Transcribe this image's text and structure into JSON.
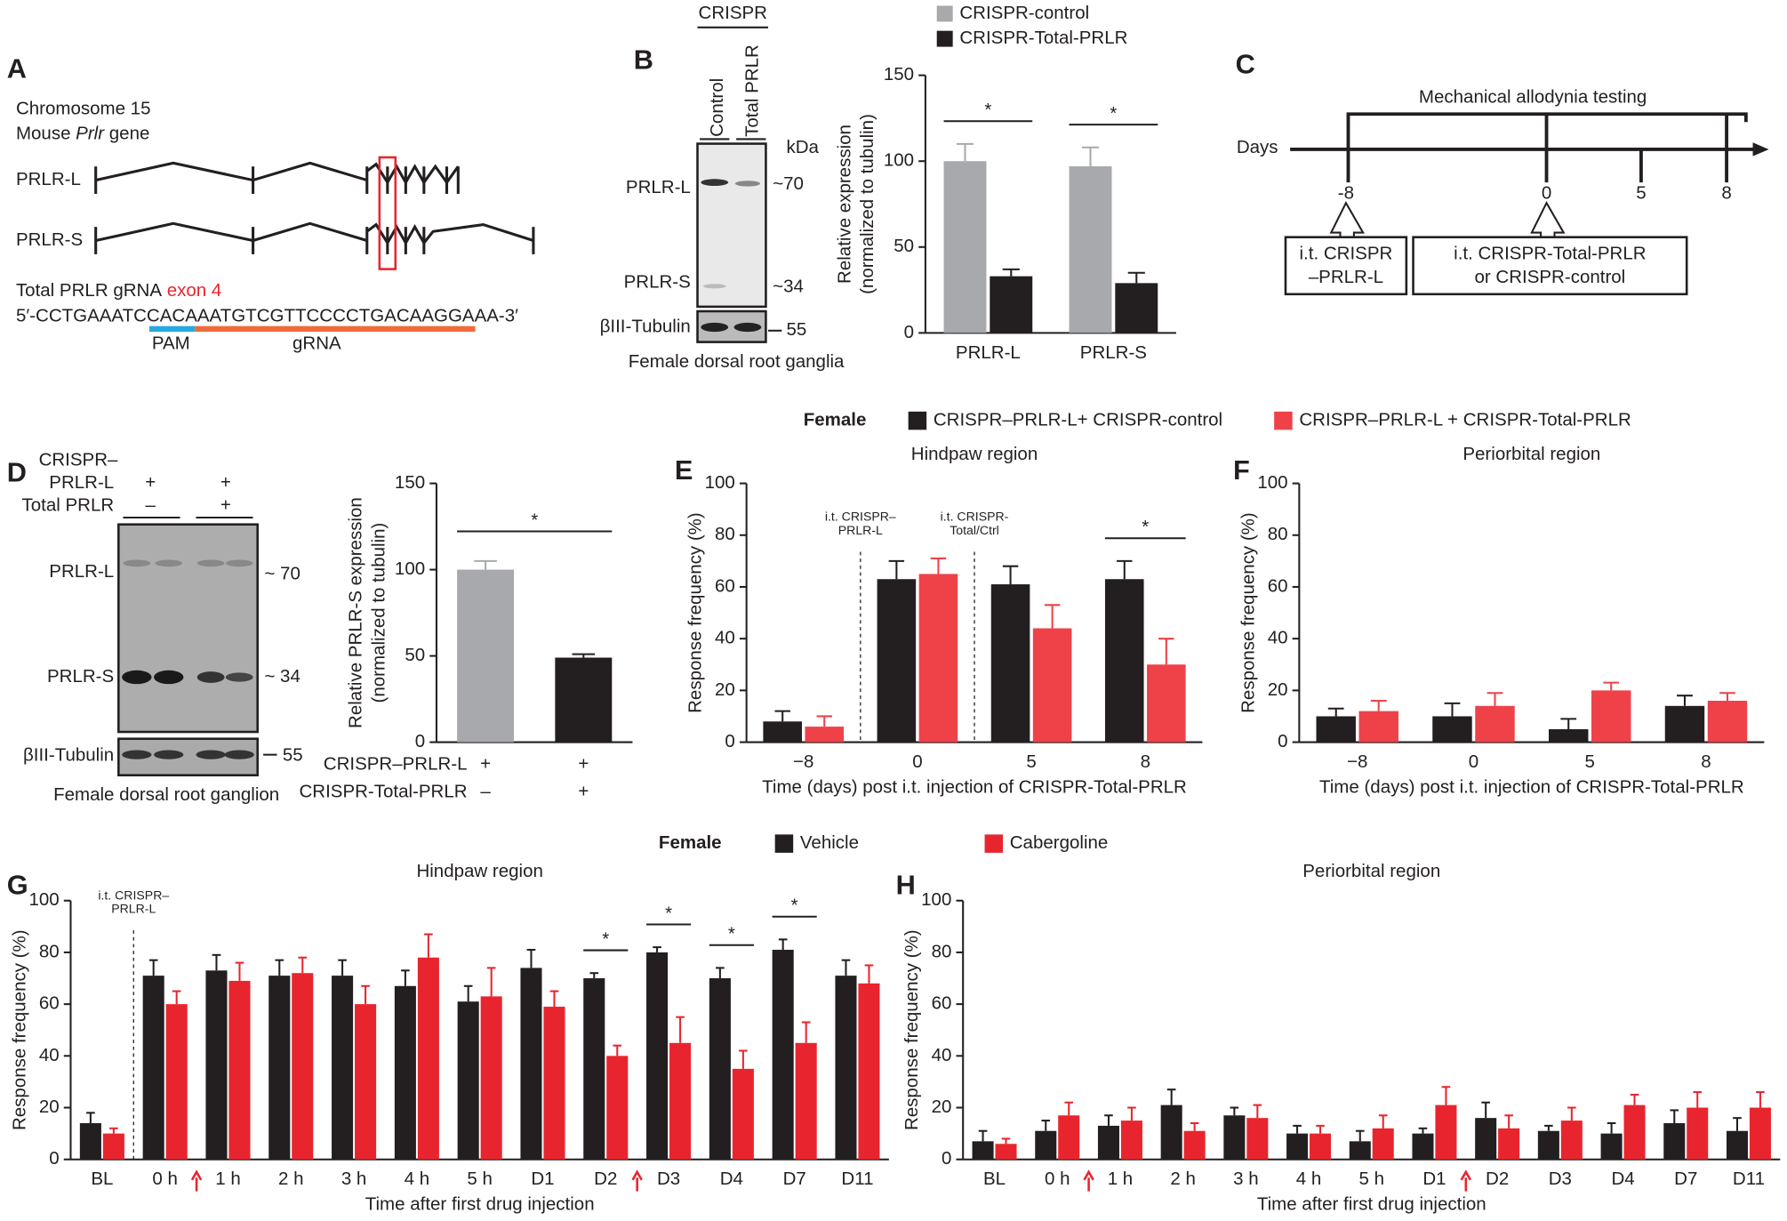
{
  "panel_labels": [
    "A",
    "B",
    "C",
    "D",
    "E",
    "F",
    "G",
    "H"
  ],
  "panel_a": {
    "chromosome": "Chromosome 15",
    "species": "Mouse",
    "gene": "Prlr",
    "gene_word": "gene",
    "isoforms": [
      "PRLR-L",
      "PRLR-S"
    ],
    "grna_label": "Total PRLR gRNA",
    "exon": "exon 4",
    "sequence": [
      "5′-CCTGAAAT",
      "CCA",
      "CAAATGTCGTTCCCCTGACA",
      "AGGAAA-3′"
    ],
    "pam": "PAM",
    "grna": "gRNA"
  },
  "blot_b": {
    "header": "CRISPR",
    "lanes": [
      "Control",
      "Total PRLR"
    ],
    "unit": "kDa",
    "bands": [
      "PRLR-L",
      "PRLR-S",
      "βIII-Tubulin"
    ],
    "sizes": [
      "~70",
      "~34",
      "55"
    ],
    "caption": "Female dorsal root ganglia"
  },
  "panel_c": {
    "title": "Mechanical allodynia testing",
    "axis": "Days",
    "ticks": [
      "-8",
      "0",
      "5",
      "8"
    ],
    "box_1": [
      "i.t. CRISPR",
      "–PRLR-L"
    ],
    "box_2": [
      "i.t. CRISPR-Total-PRLR",
      "or CRISPR-control"
    ]
  },
  "blot_d": {
    "rows": [
      {
        "label": [
          "CRISPR–",
          "PRLR-L"
        ],
        "signs": [
          "+",
          "+"
        ]
      },
      {
        "label": [
          "Total PRLR"
        ],
        "signs": [
          "–",
          "+"
        ]
      }
    ],
    "bands": [
      "PRLR-L",
      "PRLR-S",
      "βIII-Tubulin"
    ],
    "sizes": [
      "~ 70",
      "~ 34",
      "55"
    ],
    "caption": "Female dorsal root ganglion"
  },
  "chart_data": [
    {
      "type": "bar",
      "ylabel": [
        "Relative expression",
        "(normalized to tubulin)"
      ],
      "categories": [
        "PRLR-L",
        "PRLR-S"
      ],
      "series": [
        {
          "name": "CRISPR-control",
          "color": "#a7a9ac",
          "values": [
            100,
            97
          ],
          "errors": [
            10,
            11
          ]
        },
        {
          "name": "CRISPR-Total-PRLR",
          "color": "#231f20",
          "values": [
            33,
            29
          ],
          "errors": [
            4,
            6
          ]
        }
      ],
      "ylim": [
        0,
        150
      ],
      "yticks": [
        0,
        50,
        100,
        150
      ],
      "significant": [
        true,
        true
      ],
      "significance_label": "*"
    },
    {
      "type": "bar",
      "ylabel": [
        "Relative PRLR-S expression",
        "(normalized to tubulin)"
      ],
      "values": [
        100,
        49
      ],
      "errors": [
        5,
        2
      ],
      "colors": [
        "#a7a9ac",
        "#231f20"
      ],
      "x_rows": [
        "CRISPR–PRLR-L",
        "CRISPR-Total-PRLR"
      ],
      "x_row_signs": [
        [
          "+",
          "+"
        ],
        [
          "–",
          "+"
        ]
      ],
      "ylim": [
        0,
        150
      ],
      "yticks": [
        0,
        50,
        100,
        150
      ],
      "significant": true,
      "significance_label": "*"
    },
    {
      "type": "bar",
      "legend_title": "Female",
      "title": "Hindpaw region",
      "ylabel": [
        "Response frequency (%)"
      ],
      "xlabel": "Time (days) post i.t. injection of CRISPR-Total-PRLR",
      "categories": [
        "−8",
        "0",
        "5",
        "8"
      ],
      "series": [
        {
          "name": "CRISPR–PRLR-L+ CRISPR-control",
          "color": "#231f20",
          "values": [
            8,
            63,
            61,
            63
          ],
          "errors": [
            4,
            7,
            7,
            7
          ]
        },
        {
          "name": "CRISPR–PRLR-L + CRISPR-Total-PRLR",
          "color": "#ee4248",
          "values": [
            6,
            65,
            44,
            30
          ],
          "errors": [
            4,
            6,
            9,
            10
          ]
        }
      ],
      "ylim": [
        0,
        100
      ],
      "yticks": [
        0,
        20,
        40,
        60,
        80,
        100
      ],
      "significant": [
        false,
        false,
        false,
        true
      ],
      "significance_label": "*",
      "markers": [
        {
          "after": "−8",
          "text": [
            "i.t. CRISPR–",
            "PRLR-L"
          ]
        },
        {
          "after": "0",
          "text": [
            "i.t. CRISPR-",
            "Total/Ctrl"
          ]
        }
      ]
    },
    {
      "type": "bar",
      "title": "Periorbital region",
      "ylabel": [
        "Response frequency (%)"
      ],
      "xlabel": "Time (days) post i.t. injection of CRISPR-Total-PRLR",
      "categories": [
        "−8",
        "0",
        "5",
        "8"
      ],
      "series": [
        {
          "color": "#231f20",
          "values": [
            10,
            10,
            5,
            14
          ],
          "errors": [
            3,
            5,
            4,
            4
          ]
        },
        {
          "color": "#ee4248",
          "values": [
            12,
            14,
            20,
            16
          ],
          "errors": [
            4,
            5,
            3,
            3
          ]
        }
      ],
      "ylim": [
        0,
        100
      ],
      "yticks": [
        0,
        20,
        40,
        60,
        80,
        100
      ]
    },
    {
      "type": "bar",
      "legend_title": "Female",
      "title": "Hindpaw region",
      "ylabel": [
        "Response frequency (%)"
      ],
      "xlabel": "Time after first drug injection",
      "categories": [
        "BL",
        "0 h",
        "1 h",
        "2 h",
        "3 h",
        "4 h",
        "5 h",
        "D1",
        "D2",
        "D3",
        "D4",
        "D7",
        "D11"
      ],
      "series": [
        {
          "name": "Vehicle",
          "color": "#231f20",
          "values": [
            14,
            71,
            73,
            71,
            71,
            67,
            61,
            74,
            70,
            80,
            70,
            81,
            71
          ],
          "errors": [
            4,
            6,
            6,
            6,
            6,
            6,
            6,
            7,
            2,
            2,
            4,
            4,
            6
          ]
        },
        {
          "name": "Cabergoline",
          "color": "#e8252e",
          "values": [
            10,
            60,
            69,
            72,
            60,
            78,
            63,
            59,
            40,
            45,
            35,
            45,
            68
          ],
          "errors": [
            2,
            5,
            7,
            6,
            7,
            9,
            11,
            6,
            4,
            10,
            7,
            8,
            7
          ]
        }
      ],
      "ylim": [
        0,
        100
      ],
      "yticks": [
        0,
        20,
        40,
        60,
        80,
        100
      ],
      "significant": [
        false,
        false,
        false,
        false,
        false,
        false,
        false,
        false,
        true,
        true,
        true,
        true,
        false
      ],
      "significance_label": "*",
      "arrow_after": [
        false,
        true,
        false,
        false,
        false,
        false,
        false,
        false,
        true,
        false,
        false,
        false,
        false
      ],
      "markers": [
        {
          "after": "BL",
          "text": [
            "i.t. CRISPR–",
            "PRLR-L"
          ]
        }
      ]
    },
    {
      "type": "bar",
      "title": "Periorbital region",
      "ylabel": [
        "Response frequency (%)"
      ],
      "xlabel": "Time after first drug injection",
      "categories": [
        "BL",
        "0 h",
        "1 h",
        "2 h",
        "3 h",
        "4 h",
        "5 h",
        "D1",
        "D2",
        "D3",
        "D4",
        "D7",
        "D11"
      ],
      "series": [
        {
          "color": "#231f20",
          "values": [
            7,
            11,
            13,
            21,
            17,
            10,
            7,
            10,
            16,
            11,
            10,
            14,
            11
          ],
          "errors": [
            4,
            4,
            4,
            6,
            3,
            3,
            4,
            2,
            6,
            2,
            4,
            5,
            5
          ]
        },
        {
          "color": "#e8252e",
          "values": [
            6,
            17,
            15,
            11,
            16,
            10,
            12,
            21,
            12,
            15,
            21,
            20,
            20
          ],
          "errors": [
            2,
            5,
            5,
            3,
            5,
            3,
            5,
            7,
            5,
            5,
            4,
            6,
            6
          ]
        }
      ],
      "ylim": [
        0,
        100
      ],
      "yticks": [
        0,
        20,
        40,
        60,
        80,
        100
      ],
      "arrow_after": [
        false,
        true,
        false,
        false,
        false,
        false,
        false,
        true,
        false,
        false,
        false,
        false,
        false
      ]
    }
  ]
}
